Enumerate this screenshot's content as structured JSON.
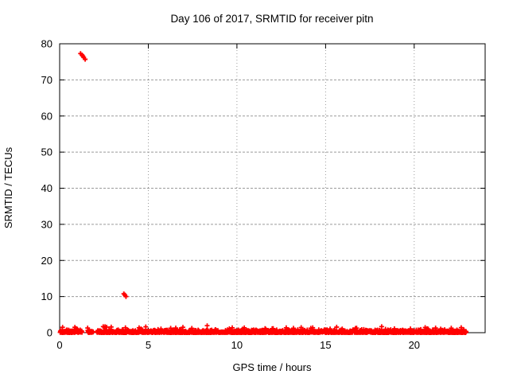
{
  "chart_data": {
    "type": "scatter",
    "title": "Day 106 of 2017, SRMTID for receiver pitn",
    "xlabel": "GPS time / hours",
    "ylabel": "SRMTID / TECUs",
    "xlim": [
      0,
      24
    ],
    "ylim": [
      0,
      80
    ],
    "xticks": [
      0,
      5,
      10,
      15,
      20
    ],
    "yticks": [
      0,
      10,
      20,
      30,
      40,
      50,
      60,
      70,
      80
    ],
    "grid": true,
    "legend": "none",
    "marker": {
      "shape": "plus",
      "color": "#ff0000"
    },
    "colors": {
      "axis": "#000000",
      "grid": "#9b9b9b",
      "text": "#000000",
      "background": "#ffffff"
    },
    "series": [
      {
        "name": "SRMTID",
        "outlier_points": [
          [
            1.18,
            77.3
          ],
          [
            1.26,
            76.9
          ],
          [
            1.31,
            76.6
          ],
          [
            1.36,
            76.2
          ],
          [
            1.44,
            75.7
          ],
          [
            3.62,
            10.75
          ],
          [
            3.68,
            10.45
          ],
          [
            3.74,
            10.0
          ]
        ],
        "baseline_band": {
          "description": "dense near-zero SRMTID values for all satellite arcs",
          "x_start": 0.03,
          "x_end": 22.93,
          "y_min": 0.0,
          "y_max": 0.9,
          "occasional_peaks_to": 1.8,
          "points_per_hour": 75,
          "gaps": [
            [
              1.26,
              1.57
            ],
            [
              1.9,
              2.1
            ]
          ]
        }
      }
    ]
  }
}
